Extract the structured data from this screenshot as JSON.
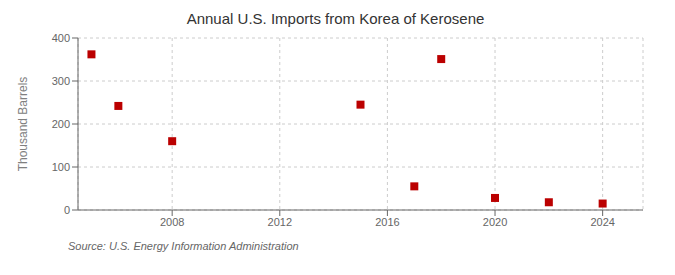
{
  "chart_data": {
    "type": "scatter",
    "title": "Annual U.S. Imports from Korea of Kerosene",
    "ylabel": "Thousand Barrels",
    "source": "Source: U.S. Energy Information Administration",
    "x": [
      2005,
      2006,
      2008,
      2015,
      2017,
      2018,
      2020,
      2022,
      2024
    ],
    "values": [
      362,
      242,
      160,
      245,
      55,
      351,
      28,
      18,
      15
    ],
    "xlim": [
      2004.5,
      2025.5
    ],
    "ylim": [
      0,
      400
    ],
    "xticks": [
      2008,
      2012,
      2016,
      2020,
      2024
    ],
    "yticks": [
      0,
      100,
      200,
      300,
      400
    ],
    "color": "#bb0000",
    "marker": "square",
    "grid": true
  }
}
